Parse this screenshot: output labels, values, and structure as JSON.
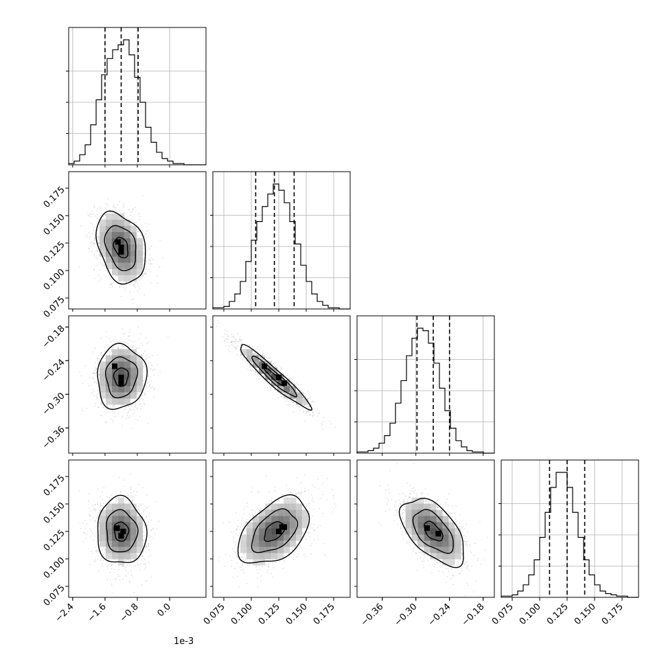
{
  "chart_data": {
    "type": "corner",
    "grid": true,
    "axes_offset_label": "1e-3",
    "parameters": [
      {
        "range": [
          -2.5,
          0.9
        ],
        "ticks": [
          -2.4,
          -1.6,
          -0.8,
          0.0
        ],
        "tick_labels": [
          "−2.4",
          "−1.6",
          "−0.8",
          "0.0"
        ],
        "quantiles": [
          -1.6,
          -1.2,
          -0.78
        ],
        "mean": -1.2,
        "sd": 0.32
      },
      {
        "range": [
          0.065,
          0.19
        ],
        "ticks": [
          0.075,
          0.1,
          0.125,
          0.15,
          0.175
        ],
        "tick_labels": [
          "0.075",
          "0.100",
          "0.125",
          "0.150",
          "0.175"
        ],
        "quantiles": [
          0.104,
          0.121,
          0.139
        ],
        "mean": 0.121,
        "sd": 0.017
      },
      {
        "range": [
          -0.405,
          -0.16
        ],
        "ticks": [
          -0.36,
          -0.3,
          -0.24,
          -0.18
        ],
        "tick_labels": [
          "−0.36",
          "−0.30",
          "−0.24",
          "−0.18"
        ],
        "quantiles": [
          -0.298,
          -0.269,
          -0.24
        ],
        "mean": -0.269,
        "sd": 0.03
      },
      {
        "range": [
          0.065,
          0.19
        ],
        "ticks": [
          0.075,
          0.1,
          0.125,
          0.15,
          0.175
        ],
        "tick_labels": [
          "0.075",
          "0.100",
          "0.125",
          "0.150",
          "0.175"
        ],
        "quantiles": [
          0.109,
          0.125,
          0.141
        ],
        "mean": 0.125,
        "sd": 0.016
      }
    ],
    "histograms": [
      {
        "param": 0,
        "counts": [
          1,
          3,
          8,
          16,
          32,
          52,
          72,
          85,
          92,
          96,
          100,
          88,
          70,
          50,
          30,
          18,
          10,
          5,
          3,
          1,
          1,
          0,
          0,
          0,
          0
        ]
      },
      {
        "param": 1,
        "counts": [
          1,
          1,
          2,
          6,
          12,
          22,
          38,
          55,
          70,
          82,
          92,
          100,
          95,
          85,
          70,
          52,
          35,
          22,
          12,
          6,
          3,
          1,
          1,
          0,
          0
        ]
      },
      {
        "param": 2,
        "counts": [
          1,
          1,
          2,
          4,
          8,
          14,
          24,
          40,
          58,
          78,
          92,
          100,
          98,
          88,
          72,
          52,
          34,
          20,
          10,
          5,
          2,
          1,
          1,
          0,
          0
        ]
      },
      {
        "param": 3,
        "counts": [
          1,
          1,
          2,
          5,
          10,
          18,
          30,
          48,
          68,
          88,
          100,
          100,
          88,
          68,
          48,
          30,
          18,
          10,
          5,
          3,
          2,
          1,
          1,
          0,
          0
        ]
      }
    ],
    "pairs": [
      {
        "x": 0,
        "y": 1,
        "rho": -0.3,
        "peaks": [
          [
            -1.2,
            0.121
          ],
          [
            -1.28,
            0.126
          ],
          [
            -1.2,
            0.117
          ]
        ]
      },
      {
        "x": 0,
        "y": 2,
        "rho": 0.05,
        "peaks": [
          [
            -1.36,
            -0.25
          ],
          [
            -1.2,
            -0.27
          ],
          [
            -1.2,
            -0.28
          ]
        ]
      },
      {
        "x": 1,
        "y": 2,
        "rho": -0.95,
        "peaks": [
          [
            0.112,
            -0.25
          ],
          [
            0.125,
            -0.27
          ],
          [
            0.13,
            -0.28
          ]
        ]
      },
      {
        "x": 0,
        "y": 3,
        "rho": -0.05,
        "peaks": [
          [
            -1.3,
            0.128
          ],
          [
            -1.15,
            0.125
          ],
          [
            -1.2,
            0.121
          ]
        ]
      },
      {
        "x": 1,
        "y": 3,
        "rho": 0.45,
        "peaks": [
          [
            0.125,
            0.125
          ],
          [
            0.128,
            0.129
          ],
          [
            0.13,
            0.129
          ]
        ]
      },
      {
        "x": 2,
        "y": 3,
        "rho": -0.55,
        "peaks": [
          [
            -0.28,
            0.128
          ],
          [
            -0.26,
            0.123
          ],
          [
            -0.26,
            0.123
          ]
        ]
      }
    ]
  }
}
